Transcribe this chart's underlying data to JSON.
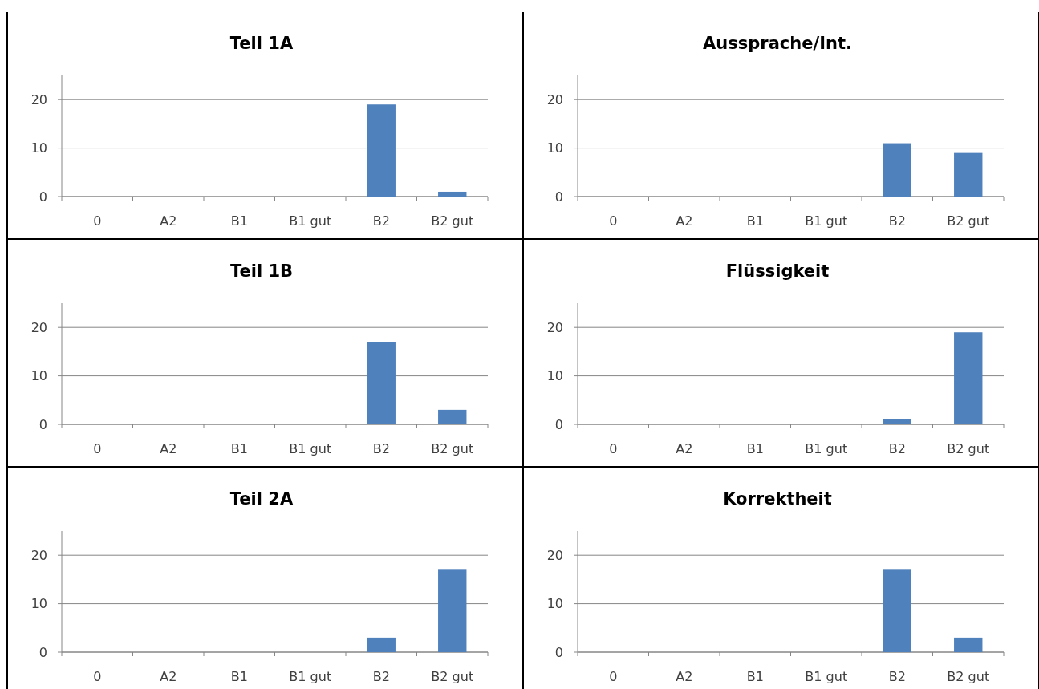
{
  "chart_data": [
    {
      "type": "bar",
      "title": "Teil 1A",
      "categories": [
        "0",
        "A2",
        "B1",
        "B1 gut",
        "B2",
        "B2 gut"
      ],
      "values": [
        0,
        0,
        0,
        0,
        19,
        1
      ],
      "color": "#4f81bd",
      "ylim": [
        0,
        25
      ],
      "yticks": [
        0,
        10,
        20
      ],
      "grid": "y"
    },
    {
      "type": "bar",
      "title": "Aussprache/Int.",
      "categories": [
        "0",
        "A2",
        "B1",
        "B1 gut",
        "B2",
        "B2 gut"
      ],
      "values": [
        0,
        0,
        0,
        0,
        11,
        9
      ],
      "color": "#4f81bd",
      "ylim": [
        0,
        25
      ],
      "yticks": [
        0,
        10,
        20
      ],
      "grid": "y"
    },
    {
      "type": "bar",
      "title": "Teil 1B",
      "categories": [
        "0",
        "A2",
        "B1",
        "B1 gut",
        "B2",
        "B2 gut"
      ],
      "values": [
        0,
        0,
        0,
        0,
        17,
        3
      ],
      "color": "#4f81bd",
      "ylim": [
        0,
        25
      ],
      "yticks": [
        0,
        10,
        20
      ],
      "grid": "y"
    },
    {
      "type": "bar",
      "title": "Flüssigkeit",
      "categories": [
        "0",
        "A2",
        "B1",
        "B1 gut",
        "B2",
        "B2 gut"
      ],
      "values": [
        0,
        0,
        0,
        0,
        1,
        19
      ],
      "color": "#4f81bd",
      "ylim": [
        0,
        25
      ],
      "yticks": [
        0,
        10,
        20
      ],
      "grid": "y"
    },
    {
      "type": "bar",
      "title": "Teil 2A",
      "categories": [
        "0",
        "A2",
        "B1",
        "B1 gut",
        "B2",
        "B2 gut"
      ],
      "values": [
        0,
        0,
        0,
        0,
        3,
        17
      ],
      "color": "#4f81bd",
      "ylim": [
        0,
        25
      ],
      "yticks": [
        0,
        10,
        20
      ],
      "grid": "y"
    },
    {
      "type": "bar",
      "title": "Korrektheit",
      "categories": [
        "0",
        "A2",
        "B1",
        "B1 gut",
        "B2",
        "B2 gut"
      ],
      "values": [
        0,
        0,
        0,
        0,
        17,
        3
      ],
      "color": "#4f81bd",
      "ylim": [
        0,
        25
      ],
      "yticks": [
        0,
        10,
        20
      ],
      "grid": "y"
    }
  ]
}
